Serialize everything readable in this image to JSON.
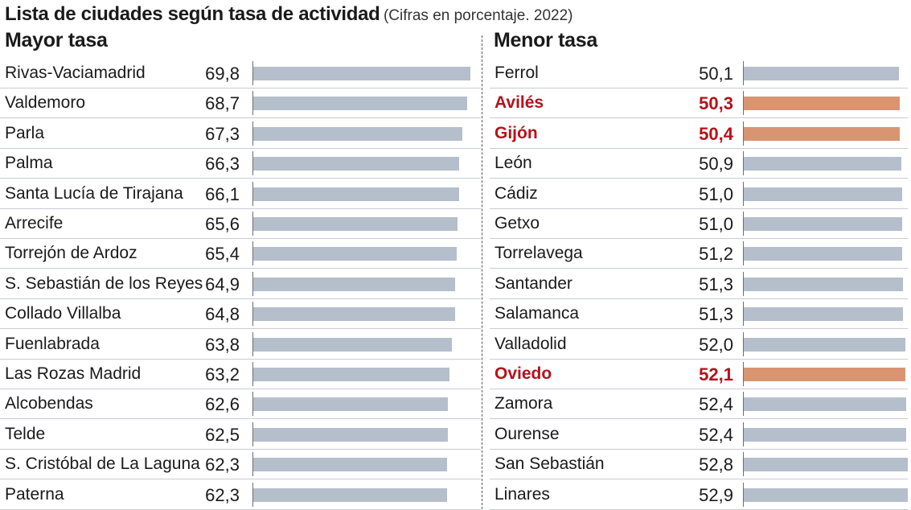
{
  "title": "Lista de ciudades según tasa de actividad",
  "subtitle": "(Cifras en porcentaje. 2022)",
  "chart_data": [
    {
      "type": "bar",
      "orientation": "horizontal",
      "title": "Mayor tasa",
      "unit": "%",
      "categories": [
        "Rivas-Vaciamadrid",
        "Valdemoro",
        "Parla",
        "Palma",
        "Santa Lucía de Tirajana",
        "Arrecife",
        "Torrejón de Ardoz",
        "S. Sebastián de los Reyes",
        "Collado Villalba",
        "Fuenlabrada",
        "Las Rozas Madrid",
        "Alcobendas",
        "Telde",
        "S. Cristóbal de La Laguna",
        "Paterna"
      ],
      "values": [
        69.8,
        68.7,
        67.3,
        66.3,
        66.1,
        65.6,
        65.4,
        64.9,
        64.8,
        63.8,
        63.2,
        62.6,
        62.5,
        62.3,
        62.3
      ],
      "labels": [
        "69,8",
        "68,7",
        "67,3",
        "66,3",
        "66,1",
        "65,6",
        "65,4",
        "64,9",
        "64,8",
        "63,8",
        "63,2",
        "62,6",
        "62,5",
        "62,3",
        "62,3"
      ],
      "highlighted": [],
      "colors": {
        "bar": "#b4bfcb",
        "highlight_bar": "#d99472",
        "highlight_text": "#b5121b"
      }
    },
    {
      "type": "bar",
      "orientation": "horizontal",
      "title": "Menor tasa",
      "unit": "%",
      "categories": [
        "Ferrol",
        "Avilés",
        "Gijón",
        "León",
        "Cádiz",
        "Getxo",
        "Torrelavega",
        "Santander",
        "Salamanca",
        "Valladolid",
        "Oviedo",
        "Zamora",
        "Ourense",
        "San Sebastián",
        "Linares"
      ],
      "values": [
        50.1,
        50.3,
        50.4,
        50.9,
        51.0,
        51.0,
        51.2,
        51.3,
        51.3,
        52.0,
        52.1,
        52.4,
        52.4,
        52.8,
        52.9
      ],
      "labels": [
        "50,1",
        "50,3",
        "50,4",
        "50,9",
        "51,0",
        "51,0",
        "51,2",
        "51,3",
        "51,3",
        "52,0",
        "52,1",
        "52,4",
        "52,4",
        "52,8",
        "52,9"
      ],
      "highlighted": [
        "Avilés",
        "Gijón",
        "Oviedo"
      ],
      "colors": {
        "bar": "#b4bfcb",
        "highlight_bar": "#d99472",
        "highlight_text": "#b5121b"
      }
    }
  ]
}
